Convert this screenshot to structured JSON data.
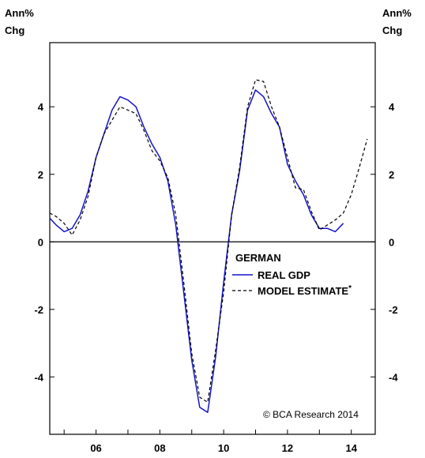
{
  "chart_data": {
    "type": "line",
    "ylabel_left": [
      "Ann%",
      "Chg"
    ],
    "ylabel_right": [
      "Ann%",
      "Chg"
    ],
    "ylim": [
      -5.7,
      5.9
    ],
    "yticks": [
      -4,
      -2,
      0,
      2,
      4
    ],
    "xlim": [
      2004.55,
      2014.75
    ],
    "xticks": [
      2006,
      2008,
      2010,
      2012,
      2014
    ],
    "xtick_labels": [
      "06",
      "08",
      "10",
      "12",
      "14"
    ],
    "zero_line": true,
    "grid": false,
    "legend": {
      "title": "GERMAN",
      "placement": "center-right",
      "entries": [
        "REAL GDP",
        "MODEL ESTIMATE"
      ],
      "footnote_mark": "*"
    },
    "copyright": "© BCA Research 2014",
    "series": [
      {
        "name": "REAL GDP",
        "style": "solid",
        "color": "#1414c8",
        "x": [
          2004.55,
          2004.75,
          2005.0,
          2005.25,
          2005.5,
          2005.75,
          2006.0,
          2006.25,
          2006.5,
          2006.75,
          2007.0,
          2007.25,
          2007.5,
          2007.75,
          2008.0,
          2008.25,
          2008.5,
          2008.75,
          2009.0,
          2009.25,
          2009.5,
          2009.75,
          2010.0,
          2010.25,
          2010.5,
          2010.75,
          2011.0,
          2011.25,
          2011.5,
          2011.75,
          2012.0,
          2012.25,
          2012.5,
          2012.75,
          2013.0,
          2013.25,
          2013.5,
          2013.75
        ],
        "values": [
          0.7,
          0.5,
          0.3,
          0.4,
          0.8,
          1.5,
          2.5,
          3.2,
          3.9,
          4.3,
          4.2,
          4.0,
          3.4,
          2.9,
          2.5,
          1.8,
          0.5,
          -1.5,
          -3.5,
          -4.9,
          -5.05,
          -3.4,
          -1.2,
          0.8,
          2.1,
          3.9,
          4.5,
          4.3,
          3.8,
          3.4,
          2.3,
          1.8,
          1.4,
          0.8,
          0.4,
          0.4,
          0.3,
          0.55
        ]
      },
      {
        "name": "MODEL ESTIMATE",
        "style": "dashed",
        "color": "#000000",
        "x": [
          2004.55,
          2004.75,
          2005.0,
          2005.25,
          2005.5,
          2005.75,
          2006.0,
          2006.25,
          2006.5,
          2006.75,
          2007.0,
          2007.25,
          2007.5,
          2007.75,
          2008.0,
          2008.25,
          2008.5,
          2008.75,
          2009.0,
          2009.25,
          2009.5,
          2009.75,
          2010.0,
          2010.25,
          2010.5,
          2010.75,
          2011.0,
          2011.25,
          2011.5,
          2011.75,
          2012.0,
          2012.25,
          2012.5,
          2012.75,
          2013.0,
          2013.25,
          2013.5,
          2013.75,
          2014.0,
          2014.25,
          2014.5
        ],
        "values": [
          0.85,
          0.75,
          0.55,
          0.2,
          0.65,
          1.35,
          2.5,
          3.2,
          3.6,
          4.0,
          3.9,
          3.8,
          3.3,
          2.7,
          2.4,
          1.9,
          0.8,
          -1.2,
          -3.3,
          -4.6,
          -4.75,
          -3.2,
          -1.5,
          0.8,
          2.2,
          4.0,
          4.8,
          4.75,
          4.0,
          3.4,
          2.5,
          1.6,
          1.55,
          0.9,
          0.35,
          0.5,
          0.65,
          0.85,
          1.4,
          2.2,
          3.05
        ]
      }
    ]
  }
}
